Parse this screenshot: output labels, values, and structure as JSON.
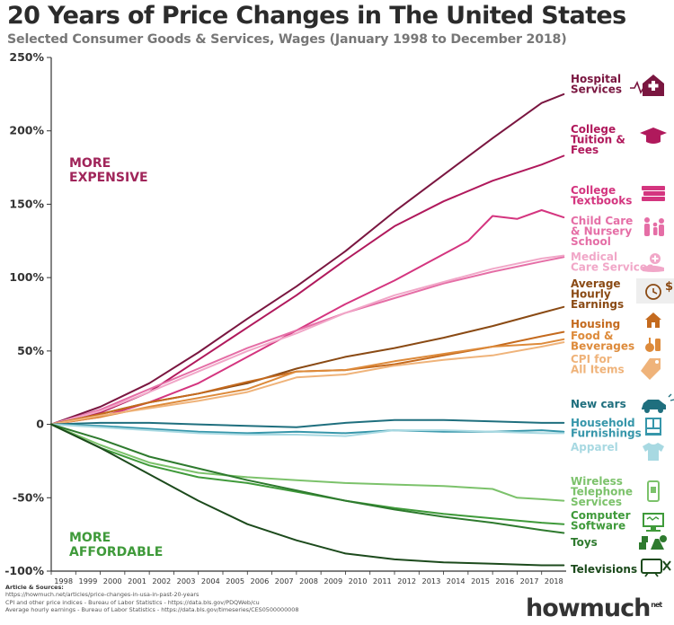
{
  "title": "20 Years of Price Changes in The United States",
  "subtitle": "Selected Consumer Goods & Services, Wages (January 1998 to December 2018)",
  "sources": {
    "header": "Article & Sources:",
    "lines": [
      "https://howmuch.net/articles/price-changes-in-usa-in-past-20-years",
      "CPI and other price indices - Bureau of Labor Statistics - https://data.bls.gov/PDQWeb/cu",
      "Average hourly earnings - Bureau of Labor Statistics - https://data.bls.gov/timeseries/CES0500000008"
    ]
  },
  "brand": {
    "name": "howmuch",
    "suffix": "net"
  },
  "chart_data": {
    "type": "line",
    "title": "20 Years of Price Changes in The United States",
    "subtitle": "Selected Consumer Goods & Services, Wages (January 1998 to December 2018)",
    "x_ticks": [
      "1998",
      "1999",
      "2000",
      "2001",
      "2002",
      "2003",
      "2004",
      "2005",
      "2006",
      "2007",
      "2008",
      "2009",
      "2010",
      "2011",
      "2012",
      "2013",
      "2014",
      "2015",
      "2016",
      "2017",
      "2018"
    ],
    "y_ticks": [
      {
        "value": 250,
        "label": "250%"
      },
      {
        "value": 200,
        "label": "200%"
      },
      {
        "value": 150,
        "label": "150%"
      },
      {
        "value": 100,
        "label": "100%"
      },
      {
        "value": 50,
        "label": "50%"
      },
      {
        "value": 0,
        "label": "0"
      },
      {
        "value": -50,
        "label": "-50%"
      },
      {
        "value": -100,
        "label": "-100%"
      }
    ],
    "xlim": [
      1998,
      2019
    ],
    "ylim": [
      -100,
      250
    ],
    "grid": false,
    "annotations": [
      {
        "lines": [
          "MORE",
          "EXPENSIVE"
        ],
        "color": "#a0255a"
      },
      {
        "lines": [
          "MORE",
          "AFFORDABLE"
        ],
        "color": "#3f9a3a"
      }
    ],
    "series": [
      {
        "name": "Hospital Services",
        "label_lines": [
          "Hospital",
          "Services"
        ],
        "color": "#7a1640",
        "icon": "hospital-icon",
        "x": [
          1998,
          2000,
          2002,
          2004,
          2006,
          2008,
          2010,
          2012,
          2014,
          2016,
          2018,
          2018.9
        ],
        "y": [
          0,
          12,
          28,
          49,
          72,
          94,
          118,
          145,
          170,
          195,
          219,
          225
        ]
      },
      {
        "name": "College Tuition & Fees",
        "label_lines": [
          "College",
          "Tuition &",
          "Fees"
        ],
        "color": "#b0195c",
        "icon": "graduation-cap-icon",
        "x": [
          1998,
          2000,
          2002,
          2004,
          2006,
          2008,
          2010,
          2012,
          2014,
          2016,
          2018,
          2018.9
        ],
        "y": [
          0,
          8,
          22,
          44,
          66,
          88,
          112,
          135,
          152,
          166,
          177,
          183
        ]
      },
      {
        "name": "College Textbooks",
        "label_lines": [
          "College",
          "Textbooks"
        ],
        "color": "#d4357f",
        "icon": "books-icon",
        "x": [
          1998,
          2000,
          2002,
          2004,
          2006,
          2008,
          2010,
          2012,
          2014,
          2015,
          2016,
          2017,
          2018,
          2018.9
        ],
        "y": [
          0,
          5,
          15,
          28,
          46,
          64,
          82,
          98,
          116,
          125,
          142,
          140,
          146,
          141
        ]
      },
      {
        "name": "Child Care & Nursery School",
        "label_lines": [
          "Child Care",
          "& Nursery",
          "School"
        ],
        "color": "#e56ea6",
        "icon": "family-icon",
        "x": [
          1998,
          2000,
          2002,
          2004,
          2006,
          2008,
          2010,
          2012,
          2014,
          2016,
          2018,
          2018.9
        ],
        "y": [
          0,
          10,
          24,
          38,
          52,
          64,
          76,
          86,
          96,
          104,
          111,
          114
        ]
      },
      {
        "name": "Medical Care Services",
        "label_lines": [
          "Medical",
          "Care Services"
        ],
        "color": "#f1a7c8",
        "icon": "medical-hand-icon",
        "x": [
          1998,
          2000,
          2002,
          2004,
          2006,
          2008,
          2010,
          2012,
          2014,
          2016,
          2018,
          2018.9
        ],
        "y": [
          0,
          9,
          22,
          36,
          50,
          62,
          76,
          88,
          97,
          106,
          113,
          115
        ]
      },
      {
        "name": "Average Hourly Earnings",
        "label_lines": [
          "Average",
          "Hourly",
          "Earnings"
        ],
        "color": "#8a4a14",
        "icon": "clock-dollar-icon",
        "x": [
          1998,
          2000,
          2002,
          2004,
          2006,
          2008,
          2010,
          2012,
          2014,
          2016,
          2018,
          2018.9
        ],
        "y": [
          0,
          7,
          15,
          21,
          28,
          38,
          46,
          52,
          59,
          67,
          76,
          80
        ]
      },
      {
        "name": "Housing",
        "label_lines": [
          "Housing"
        ],
        "color": "#c46a1e",
        "icon": "house-icon",
        "x": [
          1998,
          2000,
          2002,
          2004,
          2006,
          2008,
          2010,
          2012,
          2014,
          2016,
          2018,
          2018.9
        ],
        "y": [
          0,
          7,
          15,
          21,
          29,
          36,
          37,
          41,
          47,
          53,
          60,
          63
        ]
      },
      {
        "name": "Food & Beverages",
        "label_lines": [
          "Food &",
          "Beverages"
        ],
        "color": "#dd8a3a",
        "icon": "food-icon",
        "x": [
          1998,
          2000,
          2002,
          2004,
          2006,
          2008,
          2010,
          2012,
          2014,
          2016,
          2018,
          2018.9
        ],
        "y": [
          0,
          5,
          12,
          18,
          24,
          36,
          37,
          43,
          48,
          53,
          55,
          58
        ]
      },
      {
        "name": "CPI for All Items",
        "label_lines": [
          "CPI for",
          "All Items"
        ],
        "color": "#efb37a",
        "icon": "tag-icon",
        "x": [
          1998,
          2000,
          2002,
          2004,
          2006,
          2008,
          2010,
          2012,
          2014,
          2016,
          2018,
          2018.9
        ],
        "y": [
          0,
          6,
          11,
          16,
          22,
          32,
          34,
          40,
          44,
          47,
          53,
          56
        ]
      },
      {
        "name": "New cars",
        "label_lines": [
          "New cars"
        ],
        "color": "#1f6f7e",
        "icon": "car-icon",
        "x": [
          1998,
          2000,
          2002,
          2004,
          2006,
          2008,
          2010,
          2012,
          2014,
          2016,
          2018,
          2018.9
        ],
        "y": [
          0,
          1,
          1,
          0,
          -1,
          -2,
          1,
          3,
          3,
          2,
          1,
          1
        ]
      },
      {
        "name": "Household Furnishings",
        "label_lines": [
          "Household",
          "Furnishings"
        ],
        "color": "#3696aa",
        "icon": "cabinet-icon",
        "x": [
          1998,
          2000,
          2002,
          2004,
          2006,
          2008,
          2010,
          2012,
          2014,
          2016,
          2018,
          2018.9
        ],
        "y": [
          0,
          -1,
          -3,
          -5,
          -6,
          -5,
          -6,
          -4,
          -5,
          -5,
          -4,
          -5
        ]
      },
      {
        "name": "Apparel",
        "label_lines": [
          "Apparel"
        ],
        "color": "#a8d9e2",
        "icon": "shirt-icon",
        "x": [
          1998,
          2000,
          2002,
          2004,
          2006,
          2008,
          2010,
          2012,
          2014,
          2016,
          2018,
          2018.9
        ],
        "y": [
          0,
          -2,
          -4,
          -6,
          -7,
          -7,
          -8,
          -4,
          -4,
          -5,
          -6,
          -6
        ]
      },
      {
        "name": "Wireless Telephone Services",
        "label_lines": [
          "Wireless",
          "Telephone",
          "Services"
        ],
        "color": "#7cc26b",
        "icon": "phone-icon",
        "x": [
          1998,
          2000,
          2002,
          2004,
          2006,
          2008,
          2010,
          2012,
          2014,
          2016,
          2017,
          2018,
          2018.9
        ],
        "y": [
          0,
          -14,
          -26,
          -33,
          -36,
          -38,
          -40,
          -41,
          -42,
          -44,
          -50,
          -51,
          -52
        ]
      },
      {
        "name": "Computer Software",
        "label_lines": [
          "Computer",
          "Software"
        ],
        "color": "#3f9a3a",
        "icon": "computer-icon",
        "x": [
          1998,
          2000,
          2002,
          2004,
          2006,
          2008,
          2010,
          2012,
          2014,
          2016,
          2018,
          2018.9
        ],
        "y": [
          0,
          -16,
          -28,
          -36,
          -40,
          -46,
          -52,
          -57,
          -61,
          -64,
          -67,
          -68
        ]
      },
      {
        "name": "Toys",
        "label_lines": [
          "Toys"
        ],
        "color": "#2e7a2e",
        "icon": "toys-icon",
        "x": [
          1998,
          2000,
          2002,
          2004,
          2006,
          2008,
          2010,
          2012,
          2014,
          2016,
          2018,
          2018.9
        ],
        "y": [
          0,
          -10,
          -22,
          -30,
          -38,
          -45,
          -52,
          -58,
          -63,
          -67,
          -72,
          -74
        ]
      },
      {
        "name": "Televisions",
        "label_lines": [
          "Televisions"
        ],
        "color": "#1c4a1c",
        "icon": "tv-icon",
        "x": [
          1998,
          2000,
          2002,
          2004,
          2006,
          2008,
          2010,
          2012,
          2014,
          2016,
          2018,
          2018.9
        ],
        "y": [
          0,
          -16,
          -34,
          -52,
          -68,
          -79,
          -88,
          -92,
          -94,
          -95,
          -96,
          -96
        ]
      }
    ]
  }
}
